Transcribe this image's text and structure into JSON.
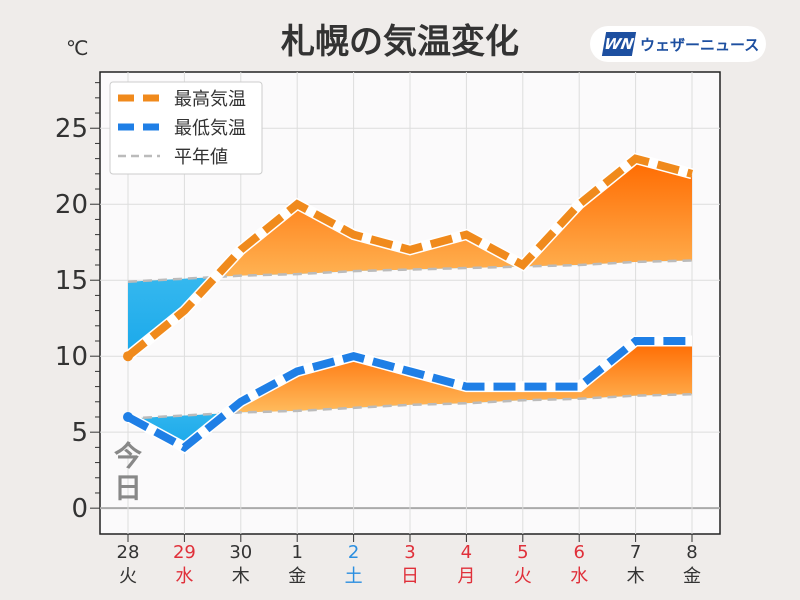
{
  "chart_data": {
    "type": "line",
    "title": "札幌の気温変化",
    "ylabel": "℃",
    "ylim": [
      -1.7,
      28.7
    ],
    "yticks": [
      0,
      5,
      10,
      15,
      20,
      25
    ],
    "grid": true,
    "legend_placement": "top-left",
    "categories": [
      {
        "day": "28",
        "weekday": "火",
        "color": "#333333"
      },
      {
        "day": "29",
        "weekday": "水",
        "color": "#e0303a"
      },
      {
        "day": "30",
        "weekday": "木",
        "color": "#333333"
      },
      {
        "day": "1",
        "weekday": "金",
        "color": "#333333"
      },
      {
        "day": "2",
        "weekday": "土",
        "color": "#2a8ee0"
      },
      {
        "day": "3",
        "weekday": "日",
        "color": "#e0303a"
      },
      {
        "day": "4",
        "weekday": "月",
        "color": "#e0303a"
      },
      {
        "day": "5",
        "weekday": "火",
        "color": "#e0303a"
      },
      {
        "day": "6",
        "weekday": "水",
        "color": "#e0303a"
      },
      {
        "day": "7",
        "weekday": "木",
        "color": "#333333"
      },
      {
        "day": "8",
        "weekday": "金",
        "color": "#333333"
      }
    ],
    "series": [
      {
        "name": "最高気温",
        "color": "#f08a1c",
        "values": [
          10,
          13,
          17,
          20,
          18,
          17,
          18,
          16,
          20,
          23,
          22
        ]
      },
      {
        "name": "最低気温",
        "color": "#1f7fe6",
        "values": [
          6,
          4,
          7,
          9,
          10,
          9,
          8,
          8,
          8,
          11,
          11
        ]
      },
      {
        "name": "平年値",
        "color": "#bbbbbb",
        "values_high": [
          14.9,
          15.1,
          15.3,
          15.4,
          15.6,
          15.7,
          15.8,
          15.9,
          16.0,
          16.2,
          16.3
        ],
        "values_low": [
          5.9,
          6.1,
          6.3,
          6.4,
          6.6,
          6.8,
          6.9,
          7.1,
          7.2,
          7.4,
          7.5
        ]
      }
    ],
    "annotation": "今日"
  },
  "header": {
    "title": "札幌の気温変化",
    "unit": "℃",
    "logo_mark": "WN",
    "logo_text": "ウェザーニュース"
  }
}
